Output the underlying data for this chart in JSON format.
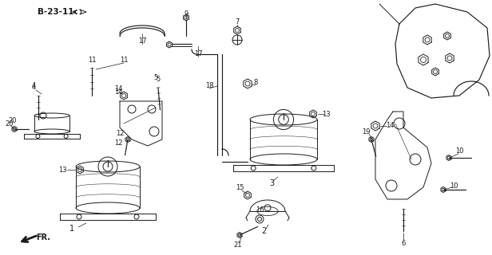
{
  "bg_color": "#ffffff",
  "fig_width": 6.16,
  "fig_height": 3.2,
  "dpi": 100,
  "lw": 0.7,
  "color": "#1a1a1a"
}
